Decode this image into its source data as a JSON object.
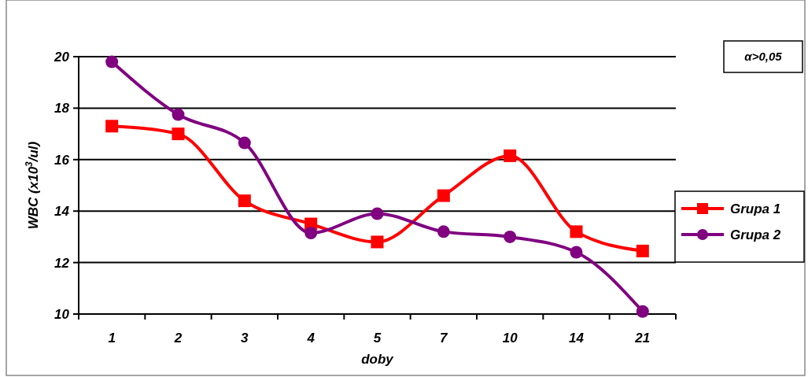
{
  "chart_data": {
    "type": "line",
    "xlabel": "doby",
    "ylabel": "WBC (x10$^{3}$/ul)",
    "annotations": [
      "α>0,05"
    ],
    "categories": [
      "1",
      "2",
      "3",
      "4",
      "5",
      "7",
      "10",
      "14",
      "21"
    ],
    "series": [
      {
        "name": "Grupa 1",
        "color": "#ff0000",
        "marker": "square",
        "values": [
          17.3,
          17.0,
          14.4,
          13.5,
          12.8,
          14.6,
          16.15,
          13.2,
          12.45
        ]
      },
      {
        "name": "Grupa 2",
        "color": "#800080",
        "marker": "circle",
        "values": [
          19.8,
          17.75,
          16.65,
          13.15,
          13.9,
          13.2,
          13.0,
          12.4,
          10.1
        ]
      }
    ],
    "ylim": [
      10,
      20
    ],
    "yticks": [
      10,
      12,
      14,
      16,
      18,
      20
    ],
    "grid": "y",
    "legend": "right",
    "line_style": "solid"
  }
}
